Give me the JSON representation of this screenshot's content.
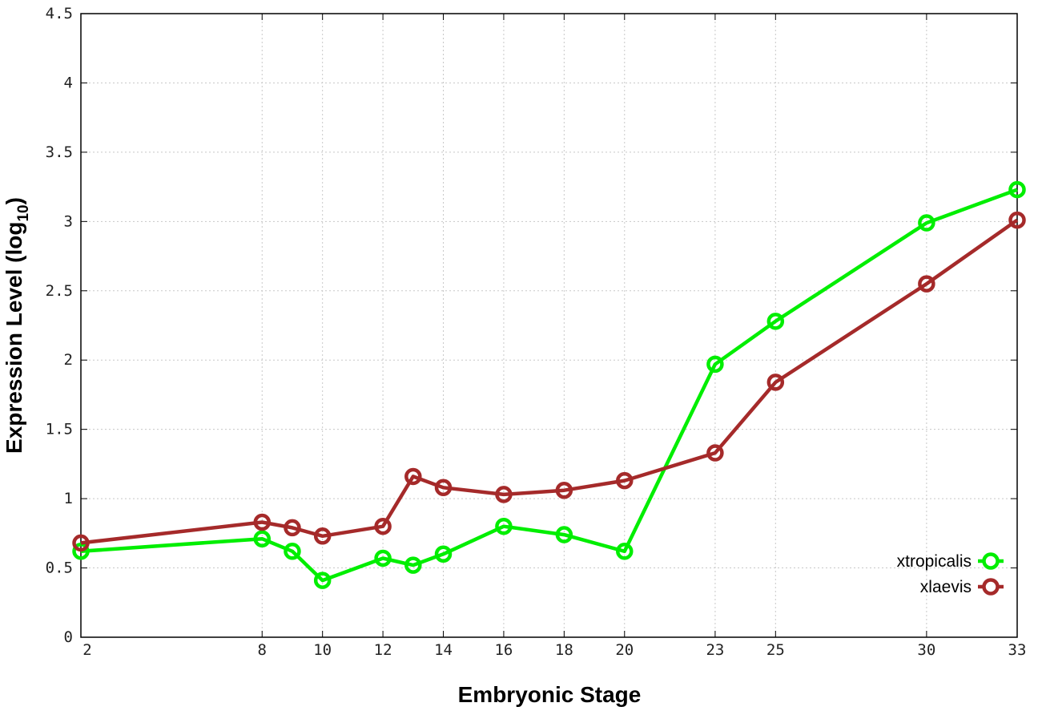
{
  "chart_data": {
    "type": "line",
    "xlabel": "Embryonic Stage",
    "ylabel": "Expression Level (log",
    "ylabel_subscript": "10",
    "ylabel_close": ")",
    "x_ticks": [
      2,
      8,
      10,
      12,
      14,
      16,
      18,
      20,
      23,
      25,
      30,
      33
    ],
    "y_ticks": [
      "0",
      "0.5",
      "1",
      "1.5",
      "2",
      "2.5",
      "3",
      "3.5",
      "4",
      "4.5"
    ],
    "x_range": [
      2,
      33
    ],
    "ylim": [
      0,
      4.5
    ],
    "grid": true,
    "legend_position": "bottom-right",
    "x": [
      2,
      8,
      9,
      10,
      12,
      13,
      14,
      16,
      18,
      20,
      23,
      25,
      30,
      33
    ],
    "series": [
      {
        "name": "xtropicalis",
        "color": "#00ee00",
        "values": [
          0.62,
          0.71,
          0.62,
          0.41,
          0.57,
          0.52,
          0.6,
          0.8,
          0.74,
          0.62,
          1.97,
          2.28,
          2.99,
          3.23
        ]
      },
      {
        "name": "xlaevis",
        "color": "#a52a2a",
        "values": [
          0.68,
          0.83,
          0.79,
          0.73,
          0.8,
          1.16,
          1.08,
          1.03,
          1.06,
          1.13,
          1.33,
          1.84,
          2.55,
          3.01
        ]
      }
    ]
  }
}
